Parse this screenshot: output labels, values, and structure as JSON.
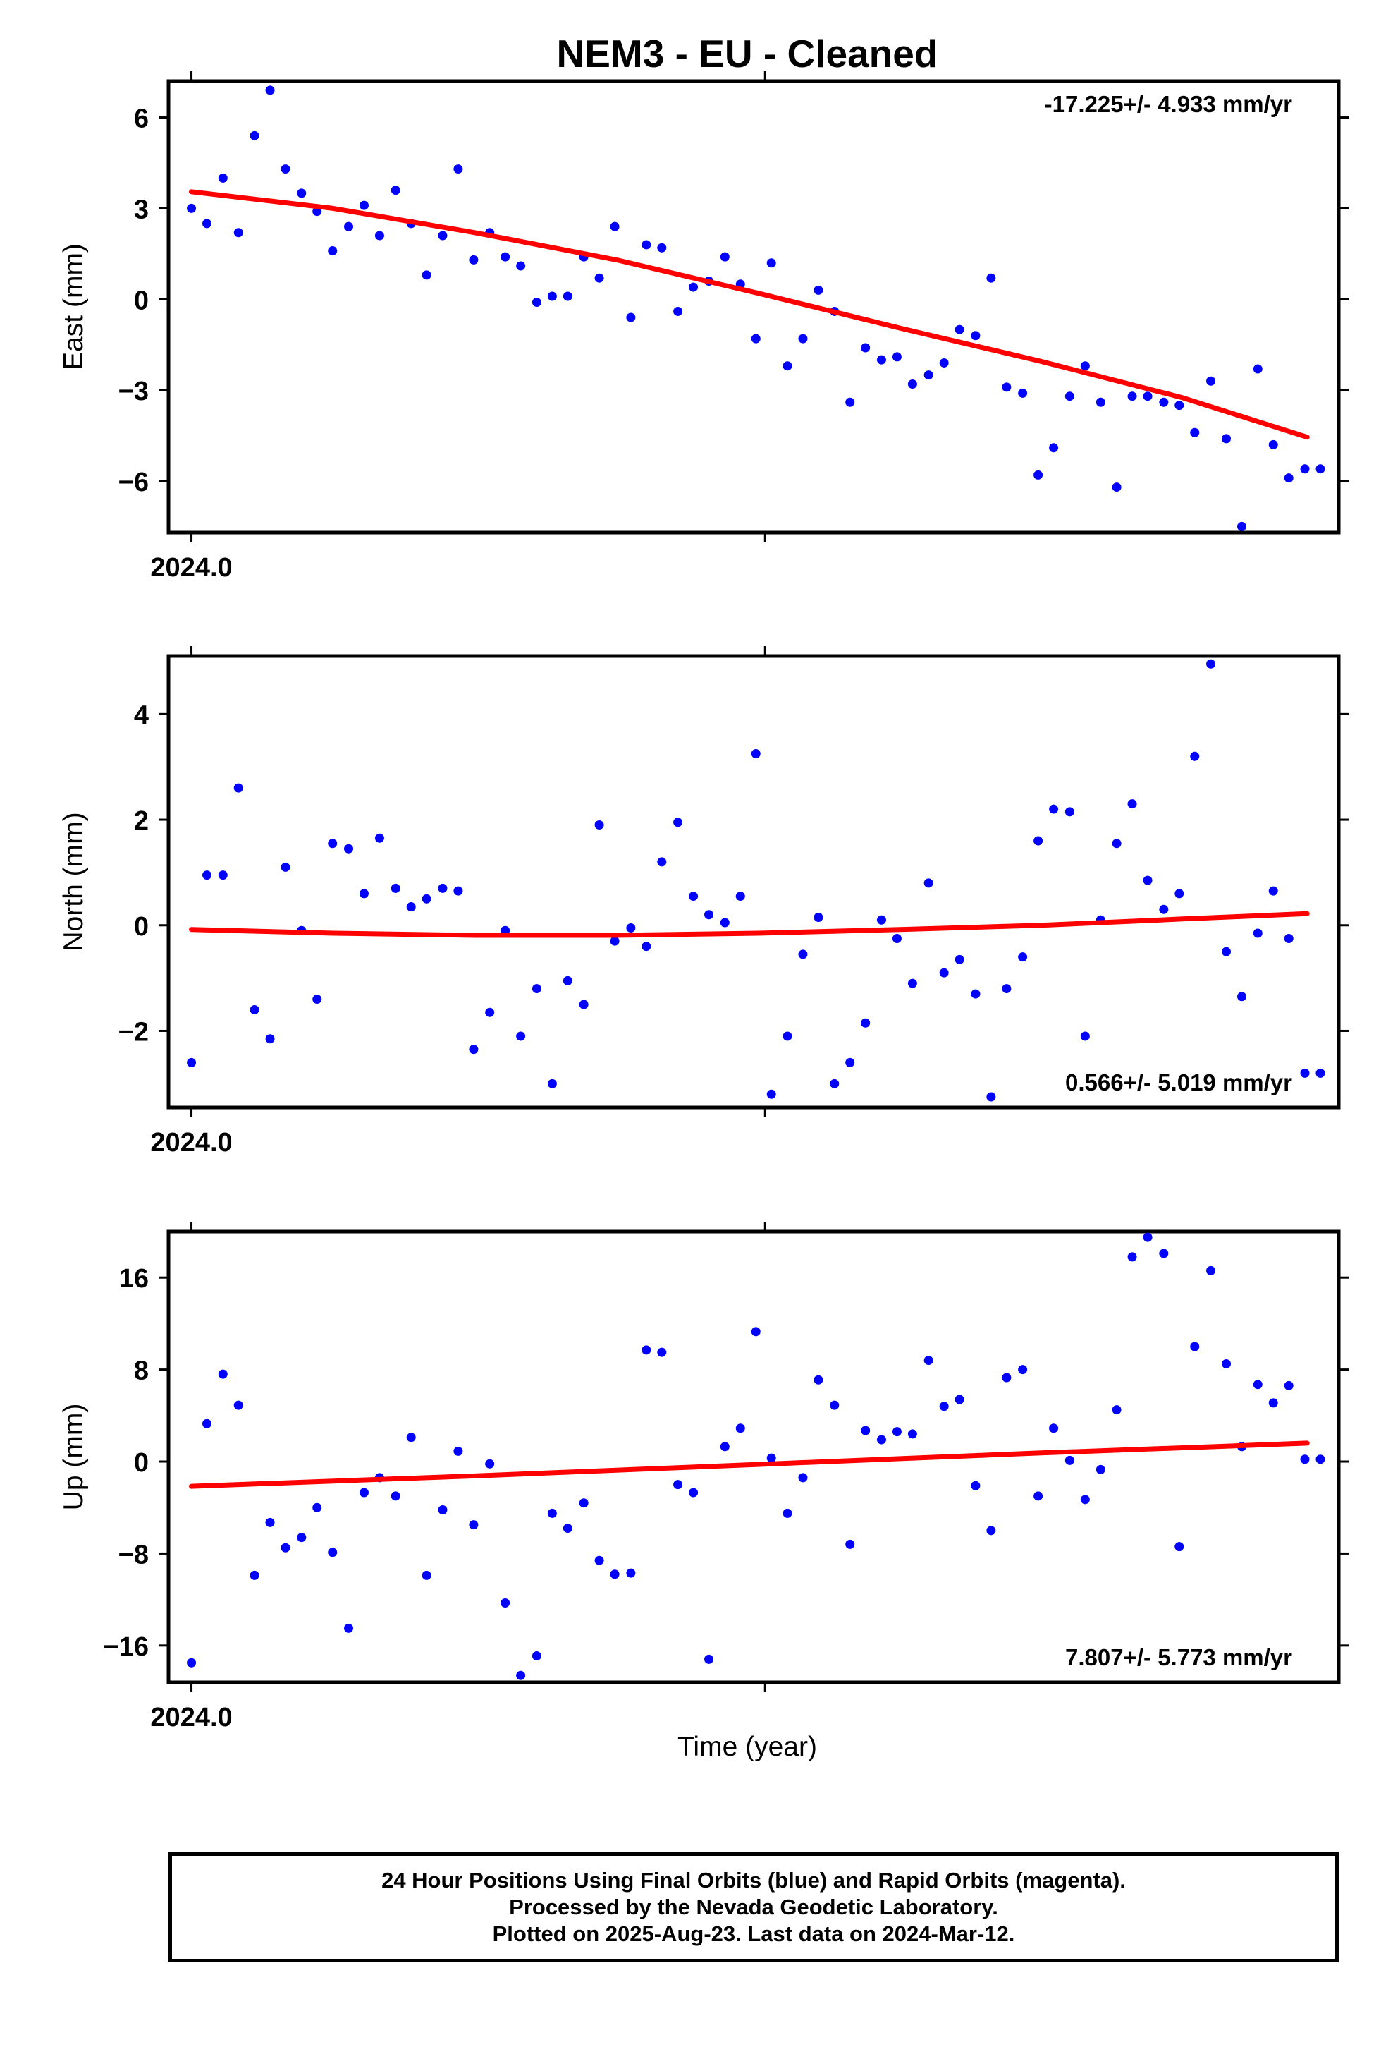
{
  "title": "NEM3  - EU - Cleaned",
  "xlabel": "Time (year)",
  "footer": {
    "line1": "24 Hour Positions Using Final Orbits (blue) and Rapid Orbits (magenta).",
    "line2": "Processed by the Nevada Geodetic Laboratory.",
    "line3": "Plotted on 2025-Aug-23. Last data on 2024-Mar-12."
  },
  "colors": {
    "points": "#0000ff",
    "fit": "#ff0000",
    "axes": "#000000"
  },
  "chart_data": [
    {
      "type": "scatter",
      "panel": "east",
      "ylabel": "East (mm)",
      "rate_label": "-17.225+/- 4.933 mm/yr",
      "rate_position": "top-right",
      "x_tick_label": "2024.0",
      "xlim": [
        2023.996,
        2024.2
      ],
      "x_ticks": [
        2024.0,
        2024.1
      ],
      "ylim": [
        -7.7,
        7.2
      ],
      "y_ticks": [
        6,
        3,
        0,
        -3,
        -6
      ],
      "y_tick_labels": [
        "6",
        "3",
        "0",
        "−3",
        "−6"
      ],
      "series": [
        {
          "x": [
            2024.0,
            2024.0027,
            2024.0055,
            2024.0082,
            2024.011,
            2024.0137,
            2024.0164,
            2024.0192,
            2024.0219,
            2024.0246,
            2024.0274,
            2024.0301,
            2024.0328,
            2024.0356,
            2024.0383,
            2024.041,
            2024.0438,
            2024.0465,
            2024.0492,
            2024.052,
            2024.0547,
            2024.0574,
            2024.0602,
            2024.0629,
            2024.0656,
            2024.0684,
            2024.0711,
            2024.0738,
            2024.0766,
            2024.0793,
            2024.082,
            2024.0848,
            2024.0875,
            2024.0902,
            2024.093,
            2024.0957,
            2024.0984,
            2024.1011,
            2024.1039,
            2024.1066,
            2024.1093,
            2024.1121,
            2024.1148,
            2024.1175,
            2024.1203,
            2024.123,
            2024.1257,
            2024.1285,
            2024.1312,
            2024.1339,
            2024.1367,
            2024.1394,
            2024.1421,
            2024.1449,
            2024.1476,
            2024.1503,
            2024.1531,
            2024.1558,
            2024.1585,
            2024.1613,
            2024.164,
            2024.1667,
            2024.1695,
            2024.1722,
            2024.1749,
            2024.1777,
            2024.1804,
            2024.1831,
            2024.1859,
            2024.1886,
            2024.1913,
            2024.1941,
            2024.1968
          ],
          "y": [
            3.0,
            2.5,
            4.0,
            2.2,
            5.4,
            6.9,
            4.3,
            3.5,
            2.9,
            1.6,
            2.4,
            3.1,
            2.1,
            3.6,
            2.5,
            0.8,
            2.1,
            4.3,
            1.3,
            2.2,
            1.4,
            1.1,
            -0.1,
            0.1,
            0.1,
            1.4,
            0.7,
            2.4,
            -0.6,
            1.8,
            1.7,
            -0.4,
            0.4,
            0.6,
            1.4,
            0.5,
            -1.3,
            1.2,
            -2.2,
            -1.3,
            0.3,
            -0.4,
            -3.4,
            -1.6,
            -2.0,
            -1.9,
            -2.8,
            -2.5,
            -2.1,
            -1.0,
            -1.2,
            0.7,
            -2.9,
            -3.1,
            -5.8,
            -4.9,
            -3.2,
            -2.2,
            -3.4,
            -6.2,
            -3.2,
            -3.2,
            -3.4,
            -3.5,
            -4.4,
            -2.7,
            -4.6,
            -7.5,
            -2.3,
            -4.8,
            -5.9,
            -5.6,
            -5.6
          ]
        }
      ],
      "fit": {
        "x": [
          2024.0,
          2024.0247,
          2024.0494,
          2024.0741,
          2024.0988,
          2024.1235,
          2024.1481,
          2024.1728,
          2024.1945
        ],
        "y": [
          3.55,
          3.0,
          2.2,
          1.3,
          0.2,
          -0.95,
          -2.05,
          -3.25,
          -4.55
        ]
      }
    },
    {
      "type": "scatter",
      "panel": "north",
      "ylabel": "North (mm)",
      "rate_label": "0.566+/- 5.019 mm/yr",
      "rate_position": "bottom-right",
      "x_tick_label": "2024.0",
      "xlim": [
        2023.996,
        2024.2
      ],
      "x_ticks": [
        2024.0,
        2024.1
      ],
      "ylim": [
        -3.45,
        5.1
      ],
      "y_ticks": [
        4,
        2,
        0,
        -2
      ],
      "y_tick_labels": [
        "4",
        "2",
        "0",
        "−2"
      ],
      "series": [
        {
          "x": [
            2024.0,
            2024.0027,
            2024.0055,
            2024.0082,
            2024.011,
            2024.0137,
            2024.0164,
            2024.0192,
            2024.0219,
            2024.0246,
            2024.0274,
            2024.0301,
            2024.0328,
            2024.0356,
            2024.0383,
            2024.041,
            2024.0438,
            2024.0465,
            2024.0492,
            2024.052,
            2024.0547,
            2024.0574,
            2024.0602,
            2024.0629,
            2024.0656,
            2024.0684,
            2024.0711,
            2024.0738,
            2024.0766,
            2024.0793,
            2024.082,
            2024.0848,
            2024.0875,
            2024.0902,
            2024.093,
            2024.0957,
            2024.0984,
            2024.1011,
            2024.1039,
            2024.1066,
            2024.1093,
            2024.1121,
            2024.1148,
            2024.1175,
            2024.1203,
            2024.123,
            2024.1257,
            2024.1285,
            2024.1312,
            2024.1339,
            2024.1367,
            2024.1394,
            2024.1421,
            2024.1449,
            2024.1476,
            2024.1503,
            2024.1531,
            2024.1558,
            2024.1585,
            2024.1613,
            2024.164,
            2024.1667,
            2024.1695,
            2024.1722,
            2024.1749,
            2024.1777,
            2024.1804,
            2024.1831,
            2024.1859,
            2024.1886,
            2024.1913,
            2024.1941,
            2024.1968
          ],
          "y": [
            -2.6,
            0.95,
            0.95,
            2.6,
            -1.6,
            -2.15,
            1.1,
            -0.1,
            -1.4,
            1.55,
            1.45,
            0.6,
            1.65,
            0.7,
            0.35,
            0.5,
            0.7,
            0.65,
            -2.35,
            -1.65,
            -0.1,
            -2.1,
            -1.2,
            -3.0,
            -1.05,
            -1.5,
            1.9,
            -0.3,
            -0.05,
            -0.4,
            1.2,
            1.95,
            0.55,
            0.2,
            0.05,
            0.55,
            3.25,
            -3.2,
            -2.1,
            -0.55,
            0.15,
            -3.0,
            -2.6,
            -1.85,
            0.1,
            -0.25,
            -1.1,
            0.8,
            -0.9,
            -0.65,
            -1.3,
            -3.25,
            -1.2,
            -0.6,
            1.6,
            2.2,
            2.15,
            -2.1,
            0.1,
            1.55,
            2.3,
            0.85,
            0.3,
            0.6,
            3.2,
            4.95,
            -0.5,
            -1.35,
            -0.15,
            0.65,
            -0.25,
            -2.8,
            -2.8
          ]
        }
      ],
      "fit": {
        "x": [
          2024.0,
          2024.0247,
          2024.0494,
          2024.0741,
          2024.0988,
          2024.1235,
          2024.1481,
          2024.1728,
          2024.1945
        ],
        "y": [
          -0.08,
          -0.15,
          -0.19,
          -0.19,
          -0.15,
          -0.08,
          0.0,
          0.12,
          0.22
        ]
      }
    },
    {
      "type": "scatter",
      "panel": "up",
      "ylabel": "Up (mm)",
      "rate_label": "7.807+/- 5.773 mm/yr",
      "rate_position": "bottom-right",
      "x_tick_label": "2024.0",
      "xlim": [
        2023.996,
        2024.2
      ],
      "x_ticks": [
        2024.0,
        2024.1
      ],
      "ylim": [
        -19.2,
        20.0
      ],
      "y_ticks": [
        16,
        8,
        0,
        -8,
        -16
      ],
      "y_tick_labels": [
        "16",
        "8",
        "0",
        "−8",
        "−16"
      ],
      "series": [
        {
          "x": [
            2024.0,
            2024.0027,
            2024.0055,
            2024.0082,
            2024.011,
            2024.0137,
            2024.0164,
            2024.0192,
            2024.0219,
            2024.0246,
            2024.0274,
            2024.0301,
            2024.0328,
            2024.0356,
            2024.0383,
            2024.041,
            2024.0438,
            2024.0465,
            2024.0492,
            2024.052,
            2024.0547,
            2024.0574,
            2024.0602,
            2024.0629,
            2024.0656,
            2024.0684,
            2024.0711,
            2024.0738,
            2024.0766,
            2024.0793,
            2024.082,
            2024.0848,
            2024.0875,
            2024.0902,
            2024.093,
            2024.0957,
            2024.0984,
            2024.1011,
            2024.1039,
            2024.1066,
            2024.1093,
            2024.1121,
            2024.1148,
            2024.1175,
            2024.1203,
            2024.123,
            2024.1257,
            2024.1285,
            2024.1312,
            2024.1339,
            2024.1367,
            2024.1394,
            2024.1421,
            2024.1449,
            2024.1476,
            2024.1503,
            2024.1531,
            2024.1558,
            2024.1585,
            2024.1613,
            2024.164,
            2024.1667,
            2024.1695,
            2024.1722,
            2024.1749,
            2024.1777,
            2024.1804,
            2024.1831,
            2024.1859,
            2024.1886,
            2024.1913,
            2024.1941,
            2024.1968
          ],
          "y": [
            -17.5,
            3.3,
            7.6,
            4.9,
            -9.9,
            -5.3,
            -7.5,
            -6.6,
            -4.0,
            -7.9,
            -14.5,
            -2.7,
            -1.4,
            -3.0,
            2.1,
            -9.9,
            -4.2,
            0.9,
            -5.5,
            -0.2,
            -12.3,
            -18.6,
            -16.9,
            -4.5,
            -5.8,
            -3.6,
            -8.6,
            -9.8,
            -9.7,
            9.7,
            9.5,
            -2.0,
            -2.7,
            -17.2,
            1.3,
            2.9,
            11.3,
            0.3,
            -4.5,
            -1.4,
            7.1,
            4.9,
            -7.2,
            2.7,
            1.9,
            2.6,
            2.4,
            8.8,
            4.8,
            5.4,
            -2.1,
            -6.0,
            7.3,
            8.0,
            -3.0,
            2.9,
            0.1,
            -3.3,
            -0.7,
            4.5,
            17.8,
            19.5,
            18.1,
            -7.4,
            10.0,
            16.6,
            8.5,
            1.3,
            6.7,
            5.1,
            6.6,
            0.2,
            0.2
          ]
        }
      ],
      "fit": {
        "x": [
          2024.0,
          2024.0247,
          2024.0494,
          2024.0741,
          2024.0988,
          2024.1235,
          2024.1481,
          2024.1728,
          2024.1945
        ],
        "y": [
          -2.15,
          -1.7,
          -1.25,
          -0.75,
          -0.25,
          0.25,
          0.75,
          1.2,
          1.6
        ]
      }
    }
  ]
}
